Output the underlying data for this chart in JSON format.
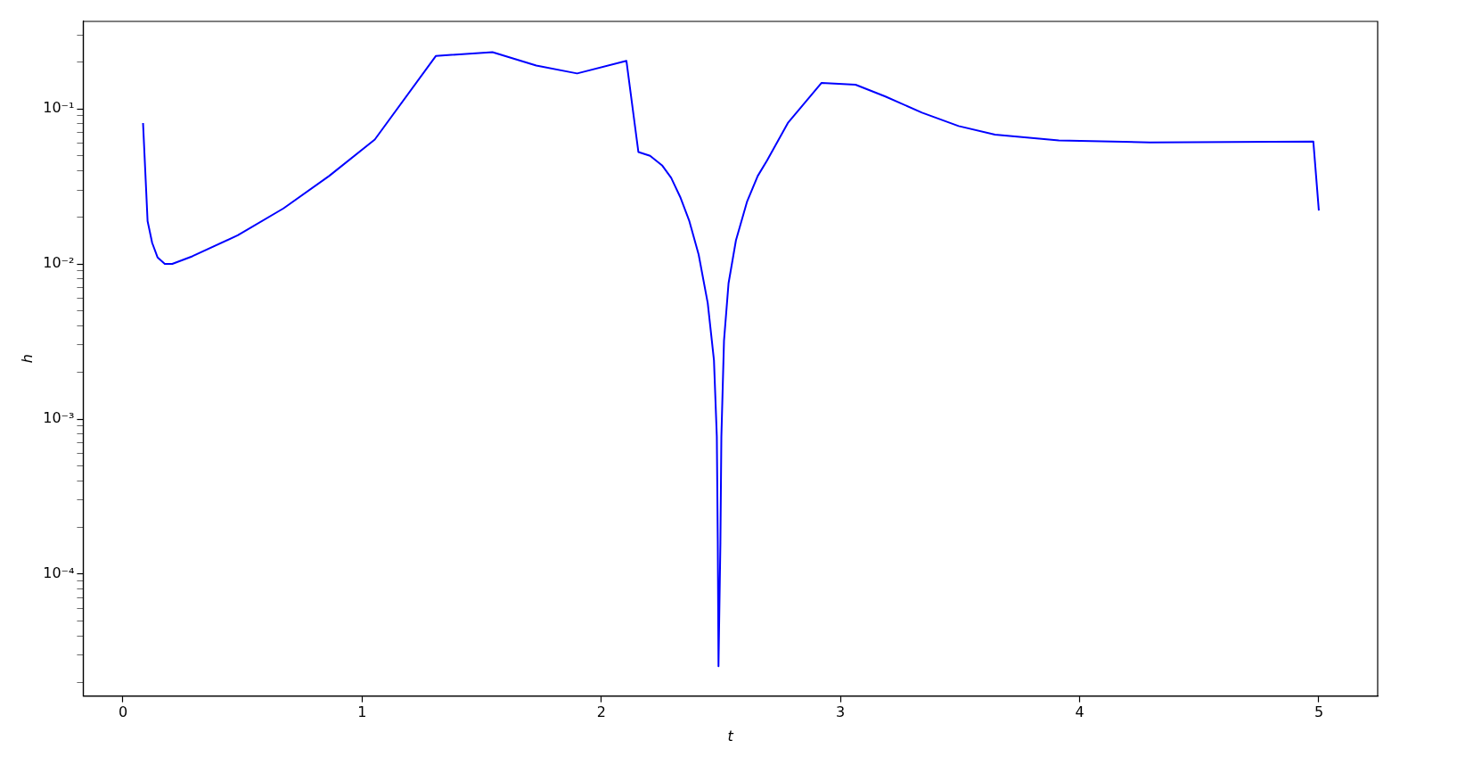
{
  "chart_data": {
    "type": "line",
    "xlabel": "t",
    "ylabel": "h",
    "log": "y",
    "grid": false,
    "legend": false,
    "marker": "none",
    "line_style": "solid",
    "xlim": [
      -0.166,
      5.246
    ],
    "xticks": [
      0,
      1,
      2,
      3,
      4,
      5
    ],
    "ylim": [
      1.64e-05,
      0.366
    ],
    "yticks": [
      {
        "value": 0.0001,
        "label": "10⁻⁴"
      },
      {
        "value": 0.001,
        "label": "10⁻³"
      },
      {
        "value": 0.01,
        "label": "10⁻²"
      },
      {
        "value": 0.1,
        "label": "10⁻¹"
      },
      {
        "value": 2e-05,
        "label": null
      },
      {
        "value": 3e-05,
        "label": null
      },
      {
        "value": 4e-05,
        "label": null
      },
      {
        "value": 5e-05,
        "label": null
      },
      {
        "value": 6e-05,
        "label": null
      },
      {
        "value": 7e-05,
        "label": null
      },
      {
        "value": 8e-05,
        "label": null
      },
      {
        "value": 9e-05,
        "label": null
      },
      {
        "value": 0.0002,
        "label": null
      },
      {
        "value": 0.0003,
        "label": null
      },
      {
        "value": 0.0004,
        "label": null
      },
      {
        "value": 0.0005,
        "label": null
      },
      {
        "value": 0.0006,
        "label": null
      },
      {
        "value": 0.0007,
        "label": null
      },
      {
        "value": 0.0008,
        "label": null
      },
      {
        "value": 0.0009,
        "label": null
      },
      {
        "value": 0.002,
        "label": null
      },
      {
        "value": 0.003,
        "label": null
      },
      {
        "value": 0.004,
        "label": null
      },
      {
        "value": 0.005,
        "label": null
      },
      {
        "value": 0.006,
        "label": null
      },
      {
        "value": 0.007,
        "label": null
      },
      {
        "value": 0.008,
        "label": null
      },
      {
        "value": 0.009,
        "label": null
      },
      {
        "value": 0.02,
        "label": null
      },
      {
        "value": 0.03,
        "label": null
      },
      {
        "value": 0.04,
        "label": null
      },
      {
        "value": 0.05,
        "label": null
      },
      {
        "value": 0.06,
        "label": null
      },
      {
        "value": 0.07,
        "label": null
      },
      {
        "value": 0.08,
        "label": null
      },
      {
        "value": 0.09,
        "label": null
      },
      {
        "value": 0.2,
        "label": null
      },
      {
        "value": 0.3,
        "label": null
      }
    ],
    "series": [
      {
        "color": "#0000ff",
        "x": [
          0.084,
          0.103,
          0.122,
          0.145,
          0.175,
          0.206,
          0.29,
          0.48,
          0.671,
          0.862,
          1.053,
          1.308,
          1.545,
          1.728,
          1.899,
          2.105,
          2.155,
          2.204,
          2.254,
          2.292,
          2.33,
          2.368,
          2.407,
          2.445,
          2.471,
          2.483,
          2.487,
          2.49,
          2.498,
          2.502,
          2.513,
          2.532,
          2.563,
          2.609,
          2.654,
          2.693,
          2.78,
          2.921,
          3.063,
          3.188,
          3.341,
          3.494,
          3.646,
          3.913,
          4.294,
          4.977,
          5.0
        ],
        "values": [
          0.081,
          0.0189,
          0.0137,
          0.011,
          0.01,
          0.01,
          0.0112,
          0.0153,
          0.0228,
          0.0369,
          0.0634,
          0.219,
          0.232,
          0.19,
          0.169,
          0.204,
          0.0527,
          0.0498,
          0.0432,
          0.0359,
          0.027,
          0.0189,
          0.0115,
          0.0056,
          0.0024,
          0.00077,
          0.00016,
          2.55e-05,
          0.00016,
          0.00077,
          0.0032,
          0.0075,
          0.0142,
          0.0251,
          0.0369,
          0.0464,
          0.081,
          0.147,
          0.143,
          0.12,
          0.0944,
          0.0774,
          0.0681,
          0.0625,
          0.0608,
          0.0616,
          0.0221
        ]
      }
    ]
  }
}
